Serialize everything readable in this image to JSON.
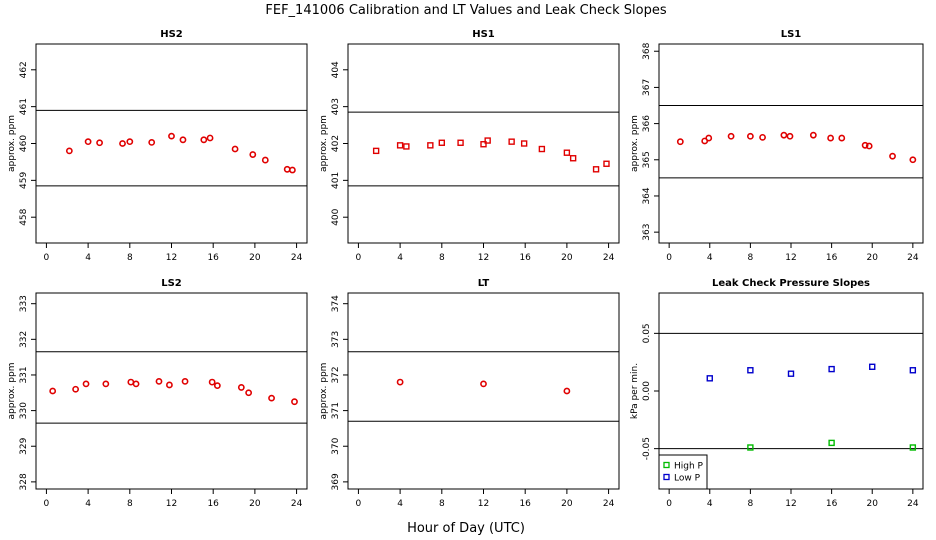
{
  "title": "FEF_141006  Calibration and LT Values and Leak Check Slopes",
  "xlabel": "Hour of Day (UTC)",
  "colors": {
    "red": "#e00000",
    "green": "#00bb00",
    "blue": "#0000cc"
  },
  "chart_data": [
    {
      "type": "scatter",
      "title": "HS2",
      "ylabel": "approx. ppm",
      "xlim": [
        -1,
        25
      ],
      "ylim": [
        457.3,
        462.7
      ],
      "xticks": [
        0,
        4,
        8,
        12,
        16,
        20,
        24
      ],
      "yticks": [
        458,
        459,
        460,
        461,
        462
      ],
      "hlines": [
        460.9,
        458.85
      ],
      "series": [
        {
          "marker": "circle",
          "color": "red",
          "x": [
            2.2,
            4.0,
            5.1,
            7.3,
            8.0,
            10.1,
            12.0,
            13.1,
            15.1,
            15.7,
            18.1,
            19.8,
            21.0,
            23.1,
            23.6
          ],
          "y": [
            459.8,
            460.05,
            460.02,
            460.0,
            460.05,
            460.03,
            460.2,
            460.1,
            460.1,
            460.15,
            459.85,
            459.7,
            459.55,
            459.3,
            459.28
          ]
        }
      ]
    },
    {
      "type": "scatter",
      "title": "HS1",
      "ylabel": "approx. ppm",
      "xlim": [
        -1,
        25
      ],
      "ylim": [
        399.3,
        404.7
      ],
      "xticks": [
        0,
        4,
        8,
        12,
        16,
        20,
        24
      ],
      "yticks": [
        400,
        401,
        402,
        403,
        404
      ],
      "hlines": [
        402.85,
        400.85
      ],
      "series": [
        {
          "marker": "square",
          "color": "red",
          "x": [
            1.7,
            4.0,
            4.6,
            6.9,
            8.0,
            9.8,
            12.0,
            12.4,
            14.7,
            15.9,
            17.6,
            20.0,
            20.6,
            22.8,
            23.8
          ],
          "y": [
            401.8,
            401.95,
            401.92,
            401.95,
            402.02,
            402.02,
            401.98,
            402.08,
            402.05,
            402.0,
            401.85,
            401.75,
            401.6,
            401.3,
            401.45
          ]
        }
      ]
    },
    {
      "type": "scatter",
      "title": "LS1",
      "ylabel": "approx. ppm",
      "xlim": [
        -1,
        25
      ],
      "ylim": [
        362.7,
        368.2
      ],
      "xticks": [
        0,
        4,
        8,
        12,
        16,
        20,
        24
      ],
      "yticks": [
        363,
        364,
        365,
        366,
        367,
        368
      ],
      "hlines": [
        366.5,
        364.5
      ],
      "series": [
        {
          "marker": "circle",
          "color": "red",
          "x": [
            1.1,
            3.5,
            3.9,
            6.1,
            8.0,
            9.2,
            11.3,
            11.9,
            14.2,
            15.9,
            17.0,
            19.3,
            19.7,
            22.0,
            24.0
          ],
          "y": [
            365.5,
            365.52,
            365.6,
            365.65,
            365.65,
            365.62,
            365.68,
            365.65,
            365.68,
            365.6,
            365.6,
            365.4,
            365.38,
            365.1,
            365.0
          ]
        }
      ]
    },
    {
      "type": "scatter",
      "title": "LS2",
      "ylabel": "approx. ppm",
      "xlim": [
        -1,
        25
      ],
      "ylim": [
        327.8,
        333.3
      ],
      "xticks": [
        0,
        4,
        8,
        12,
        16,
        20,
        24
      ],
      "yticks": [
        328,
        329,
        330,
        331,
        332,
        333
      ],
      "hlines": [
        331.65,
        329.65
      ],
      "series": [
        {
          "marker": "circle",
          "color": "red",
          "x": [
            0.6,
            2.8,
            3.8,
            5.7,
            8.1,
            8.6,
            10.8,
            11.8,
            13.3,
            15.9,
            16.4,
            18.7,
            19.4,
            21.6,
            23.8
          ],
          "y": [
            330.55,
            330.6,
            330.75,
            330.75,
            330.8,
            330.75,
            330.82,
            330.72,
            330.82,
            330.8,
            330.7,
            330.65,
            330.5,
            330.35,
            330.25
          ]
        }
      ]
    },
    {
      "type": "scatter",
      "title": "LT",
      "ylabel": "approx. ppm",
      "xlim": [
        -1,
        25
      ],
      "ylim": [
        368.8,
        374.3
      ],
      "xticks": [
        0,
        4,
        8,
        12,
        16,
        20,
        24
      ],
      "yticks": [
        369,
        370,
        371,
        372,
        373,
        374
      ],
      "hlines": [
        372.65,
        370.7
      ],
      "series": [
        {
          "marker": "circle",
          "color": "red",
          "x": [
            4.0,
            12.0,
            20.0
          ],
          "y": [
            371.8,
            371.75,
            371.55
          ]
        }
      ]
    },
    {
      "type": "scatter",
      "title": "Leak Check Pressure Slopes",
      "ylabel": "kPa per min.",
      "xlim": [
        -1,
        25
      ],
      "ylim": [
        -0.085,
        0.085
      ],
      "xticks": [
        0,
        4,
        8,
        12,
        16,
        20,
        24
      ],
      "yticks": [
        -0.05,
        0.0,
        0.05
      ],
      "ytick_labels": [
        "-0.05",
        "0.00",
        "0.05"
      ],
      "hlines": [
        0.05,
        -0.05
      ],
      "legend": "bottom-left",
      "series": [
        {
          "name": "High P",
          "marker": "square",
          "color": "green",
          "x": [
            8,
            16,
            24
          ],
          "y": [
            -0.049,
            -0.045,
            -0.049
          ]
        },
        {
          "name": "Low P",
          "marker": "square",
          "color": "blue",
          "x": [
            4,
            8,
            12,
            16,
            20,
            24
          ],
          "y": [
            0.011,
            0.018,
            0.015,
            0.019,
            0.021,
            0.018
          ]
        }
      ]
    }
  ]
}
